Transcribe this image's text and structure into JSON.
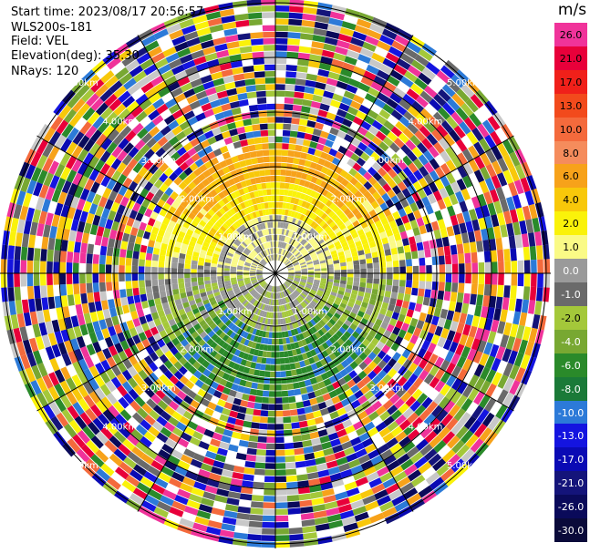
{
  "header": {
    "start_time": "Start time: 2023/08/17 20:56:57",
    "instrument": "WLS200s-181",
    "field": "Field: VEL",
    "elevation": "Elevation(deg): 35.30",
    "nrays": "NRays: 120"
  },
  "colorbar": {
    "title": "m/s",
    "levels": [
      {
        "label": "26.0",
        "color": "#f0339a"
      },
      {
        "label": "21.0",
        "color": "#e8003a"
      },
      {
        "label": "17.0",
        "color": "#f0201a"
      },
      {
        "label": "13.0",
        "color": "#f24a1c"
      },
      {
        "label": "10.0",
        "color": "#f46a3c"
      },
      {
        "label": "8.0",
        "color": "#f58c5c"
      },
      {
        "label": "6.0",
        "color": "#f7a21a"
      },
      {
        "label": "4.0",
        "color": "#f8c80a"
      },
      {
        "label": "2.0",
        "color": "#faf20a"
      },
      {
        "label": "1.0",
        "color": "#fafa86"
      },
      {
        "label": "0.0",
        "color": "#9a9a9a"
      },
      {
        "label": "-1.0",
        "color": "#6a6a6a"
      },
      {
        "label": "-2.0",
        "color": "#a4c83a"
      },
      {
        "label": "-4.0",
        "color": "#78a832"
      },
      {
        "label": "-6.0",
        "color": "#2a8a2a"
      },
      {
        "label": "-8.0",
        "color": "#1a7a38"
      },
      {
        "label": "-10.0",
        "color": "#2c7ad8"
      },
      {
        "label": "-13.0",
        "color": "#1414e0"
      },
      {
        "label": "-17.0",
        "color": "#0a0ab4"
      },
      {
        "label": "-21.0",
        "color": "#14147a"
      },
      {
        "label": "-26.0",
        "color": "#0a0a5a"
      },
      {
        "label": "-30.0",
        "color": "#0a0a3a"
      }
    ]
  },
  "range_rings": [
    "1.00km",
    "2.00km",
    "3.00km",
    "4.00km",
    "5.00km"
  ],
  "palette": {
    "noise": [
      "#f0339a",
      "#e8003a",
      "#faf20a",
      "#f7a21a",
      "#14147a",
      "#1414e0",
      "#2a8a2a",
      "#78a832",
      "#f46a3c",
      "#0a0ab4",
      "#c8c8c8",
      "#6a6a6a",
      "#a4c83a",
      "#f8c80a",
      "#0a0a5a",
      "#2c7ad8"
    ]
  }
}
